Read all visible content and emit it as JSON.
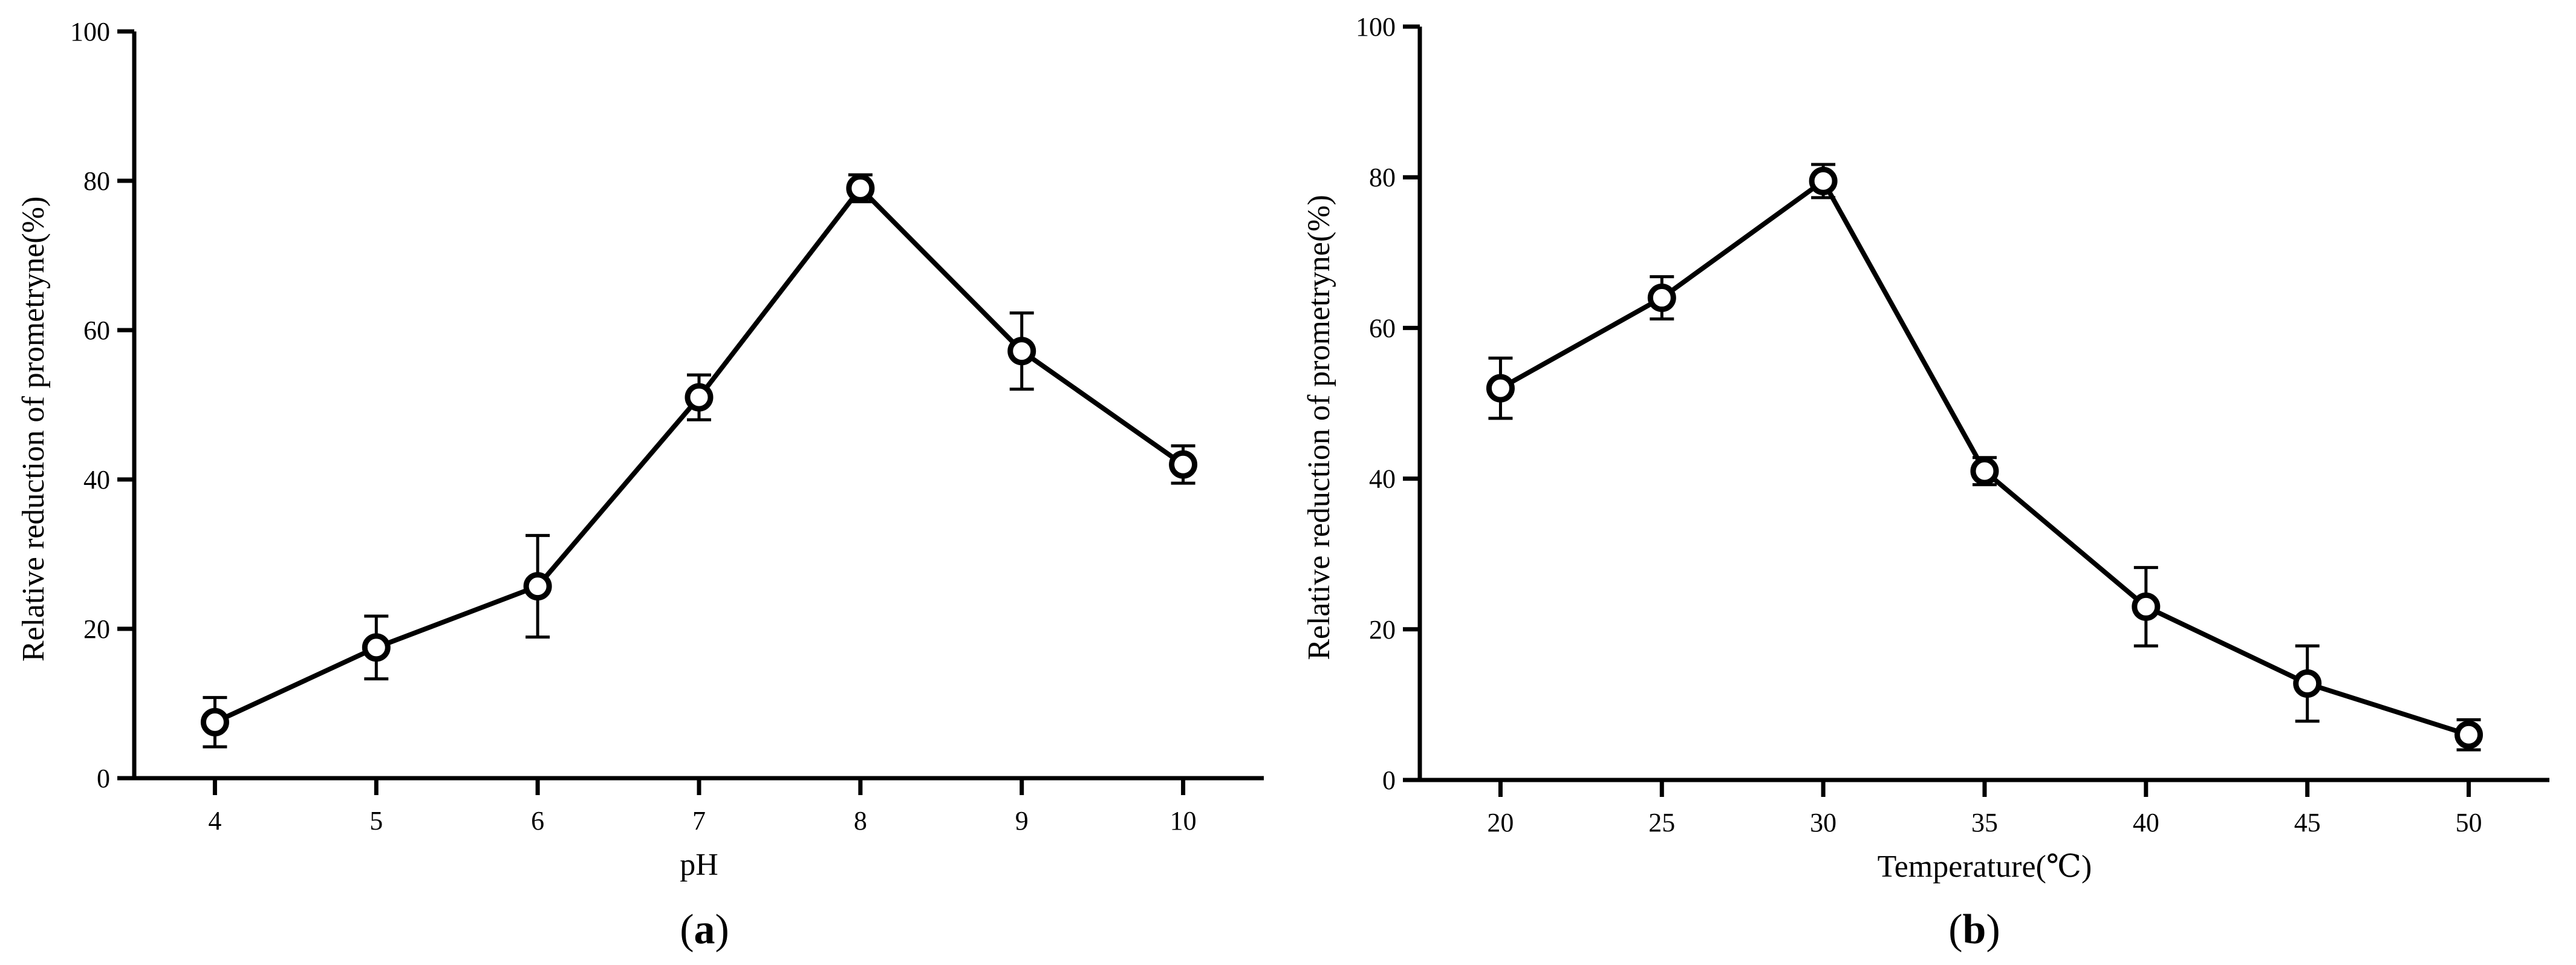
{
  "chart_data": [
    {
      "type": "line",
      "panel_label": "a",
      "xlabel": "pH",
      "ylabel": "Relative reduction of prometryne(%)",
      "x": [
        4,
        5,
        6,
        7,
        8,
        9,
        10
      ],
      "x_ticks": [
        "4",
        "5",
        "6",
        "7",
        "8",
        "9",
        "10"
      ],
      "xlim": [
        3.5,
        10.5
      ],
      "ylim": [
        0,
        100
      ],
      "y_ticks": [
        "0",
        "20",
        "40",
        "60",
        "80",
        "100"
      ],
      "series": [
        {
          "values": [
            7.5,
            17.5,
            25.7,
            51.0,
            79.0,
            57.2,
            42.0
          ],
          "error": [
            3.3,
            4.2,
            6.8,
            3.0,
            1.8,
            5.1,
            2.5
          ]
        }
      ],
      "marker": "open-circle",
      "grid": false
    },
    {
      "type": "line",
      "panel_label": "b",
      "xlabel": "Temperature(℃)",
      "ylabel": "Relative reduction of prometryne(%)",
      "x": [
        20,
        25,
        30,
        35,
        40,
        45,
        50
      ],
      "x_ticks": [
        "20",
        "25",
        "30",
        "35",
        "40",
        "45",
        "50"
      ],
      "xlim": [
        17.5,
        52.5
      ],
      "ylim": [
        0,
        100
      ],
      "y_ticks": [
        "0",
        "20",
        "40",
        "60",
        "80",
        "100"
      ],
      "series": [
        {
          "values": [
            52.0,
            64.0,
            79.5,
            41.0,
            23.0,
            12.8,
            6.0
          ],
          "error": [
            4.0,
            2.8,
            2.2,
            1.8,
            5.2,
            5.0,
            2.0
          ]
        }
      ],
      "marker": "open-circle",
      "grid": false
    }
  ]
}
